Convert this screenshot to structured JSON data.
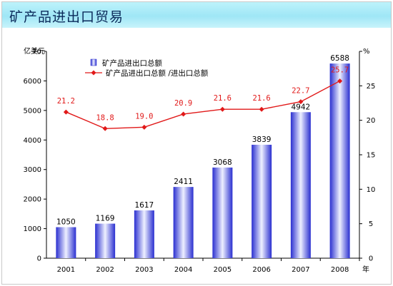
{
  "page": {
    "title": "矿产品进出口贸易"
  },
  "chart_data": {
    "type": "bar",
    "categories": [
      "2001",
      "2002",
      "2003",
      "2004",
      "2005",
      "2006",
      "2007",
      "2008"
    ],
    "series": [
      {
        "name": "矿产品进出口总额",
        "type": "bar",
        "axis": "left",
        "values": [
          1050,
          1169,
          1617,
          2411,
          3068,
          3839,
          4942,
          6588
        ]
      },
      {
        "name": "矿产品进出口总额 /进出口总额",
        "type": "line",
        "axis": "right",
        "values": [
          21.2,
          18.8,
          19.0,
          20.9,
          21.6,
          21.6,
          22.7,
          25.7
        ]
      }
    ],
    "y_left": {
      "unit": "亿美元",
      "range": [
        0,
        7000
      ],
      "ticks": [
        0,
        1000,
        2000,
        3000,
        4000,
        5000,
        6000,
        7000
      ]
    },
    "y_right": {
      "unit": "%",
      "range": [
        0,
        30
      ],
      "ticks": [
        0,
        5,
        10,
        15,
        20,
        25
      ]
    },
    "x_unit": "年",
    "legend_position": "top-left",
    "grid": false,
    "colors": {
      "bar_dark": "#2a2fd0",
      "bar_light": "#eef0ff",
      "line": "#e11919",
      "title_band": "#a8ebf7",
      "title_text": "#0b2a5a"
    }
  }
}
